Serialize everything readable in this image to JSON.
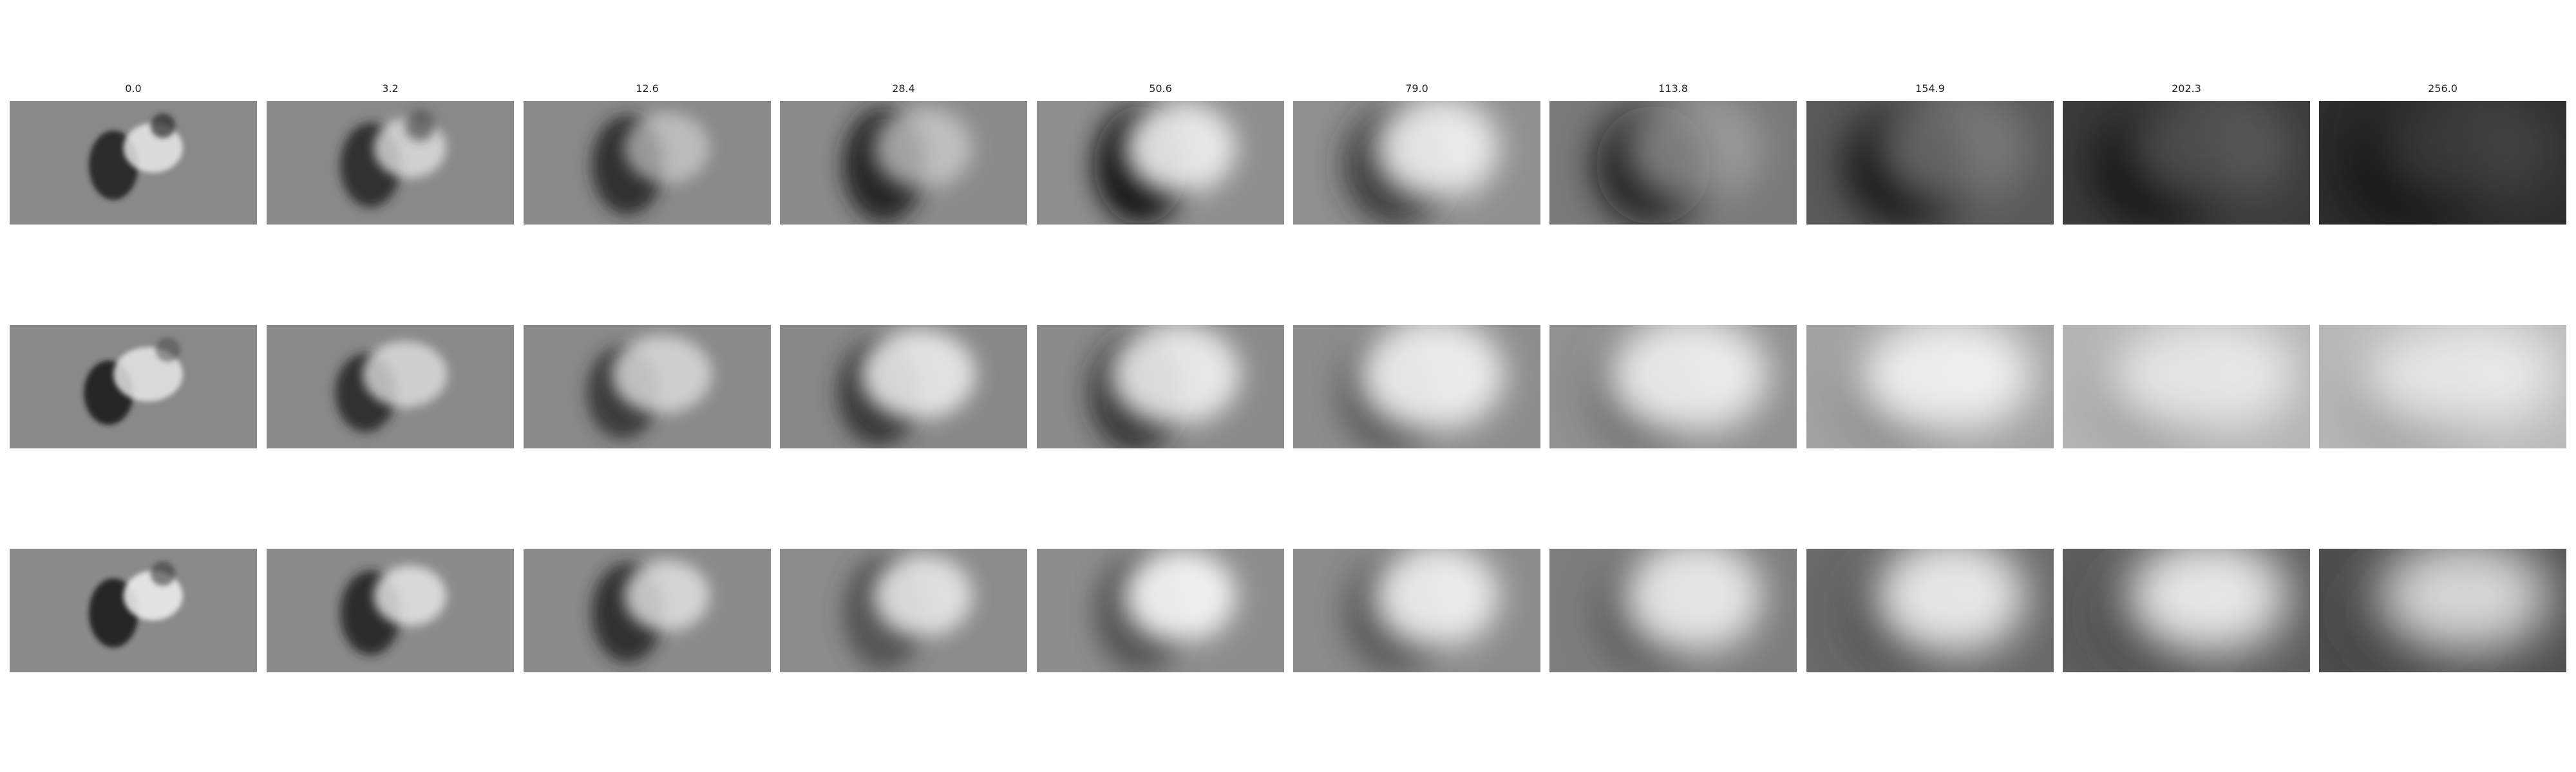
{
  "figure": {
    "column_titles": [
      "0.0",
      "3.2",
      "12.6",
      "28.4",
      "50.6",
      "79.0",
      "113.8",
      "154.9",
      "202.3",
      "256.0"
    ],
    "rows": [
      {
        "panels": [
          {
            "bg": "#898989",
            "blobs": [
              {
                "c": "#202020",
                "o": 0.9
              },
              {
                "c": "#efefef",
                "o": 0.8
              },
              {
                "c": "#2a2a2a",
                "o": 0.7
              }
            ]
          },
          {
            "bg": "#898989",
            "blobs": [
              {
                "c": "#222222",
                "o": 0.85
              },
              {
                "c": "#e8e8e8",
                "o": 0.75
              },
              {
                "c": "#303030",
                "o": 0.6
              }
            ]
          },
          {
            "bg": "#898989",
            "blobs": [
              {
                "c": "#202020",
                "o": 0.85
              },
              {
                "c": "#dddddd",
                "o": 0.6
              }
            ]
          },
          {
            "bg": "#8a8a8a",
            "blobs": [
              {
                "c": "#1e1e1e",
                "o": 0.9
              },
              {
                "c": "#d5d5d5",
                "o": 0.7
              }
            ]
          },
          {
            "bg": "#8e8e8e",
            "blobs": [
              {
                "c": "#0e0e0e",
                "o": 0.95
              },
              {
                "c": "#f2f2f2",
                "o": 0.9
              }
            ]
          },
          {
            "bg": "#8f8f8f",
            "blobs": [
              {
                "c": "#262626",
                "o": 0.9
              },
              {
                "c": "#f6f6f6",
                "o": 0.9
              }
            ]
          },
          {
            "bg": "#7a7a7a",
            "blobs": [
              {
                "c": "#101010",
                "o": 0.95
              },
              {
                "c": "#a8a8a8",
                "o": 0.7
              }
            ]
          },
          {
            "bg": "#5a5a5a",
            "blobs": [
              {
                "c": "#050505",
                "o": 0.95
              },
              {
                "c": "#8a8a8a",
                "o": 0.7
              }
            ]
          },
          {
            "bg": "#3c3c3c",
            "blobs": [
              {
                "c": "#000000",
                "o": 0.95
              },
              {
                "c": "#6a6a6a",
                "o": 0.7
              }
            ]
          },
          {
            "bg": "#2e2e2e",
            "blobs": [
              {
                "c": "#000000",
                "o": 0.85
              },
              {
                "c": "#5a5a5a",
                "o": 0.6
              }
            ]
          }
        ]
      },
      {
        "panels": [
          {
            "bg": "#898989",
            "blobs": [
              {
                "c": "#1a1a1a",
                "o": 0.9
              },
              {
                "c": "#eeeeee",
                "o": 0.8
              },
              {
                "c": "#444444",
                "o": 0.5
              }
            ]
          },
          {
            "bg": "#898989",
            "blobs": [
              {
                "c": "#202020",
                "o": 0.85
              },
              {
                "c": "#e6e6e6",
                "o": 0.75
              }
            ]
          },
          {
            "bg": "#898989",
            "blobs": [
              {
                "c": "#2a2a2a",
                "o": 0.8
              },
              {
                "c": "#e0e0e0",
                "o": 0.8
              }
            ]
          },
          {
            "bg": "#888888",
            "blobs": [
              {
                "c": "#2c2c2c",
                "o": 0.85
              },
              {
                "c": "#f2f2f2",
                "o": 0.85
              }
            ]
          },
          {
            "bg": "#8a8a8a",
            "blobs": [
              {
                "c": "#1e1e1e",
                "o": 0.8
              },
              {
                "c": "#f8f8f8",
                "o": 0.85
              }
            ]
          },
          {
            "bg": "#8d8d8d",
            "blobs": [
              {
                "c": "#3a3a3a",
                "o": 0.7
              },
              {
                "c": "#f6f6f6",
                "o": 0.9
              }
            ]
          },
          {
            "bg": "#909090",
            "blobs": [
              {
                "c": "#4a4a4a",
                "o": 0.6
              },
              {
                "c": "#f4f4f4",
                "o": 0.9
              }
            ]
          },
          {
            "bg": "#a2a2a2",
            "blobs": [
              {
                "c": "#5a5a5a",
                "o": 0.5
              },
              {
                "c": "#f8f8f8",
                "o": 0.9
              }
            ]
          },
          {
            "bg": "#b4b4b4",
            "blobs": [
              {
                "c": "#707070",
                "o": 0.5
              },
              {
                "c": "#f2f2f2",
                "o": 0.85
              }
            ]
          },
          {
            "bg": "#b8b8b8",
            "blobs": [
              {
                "c": "#5e5e5e",
                "o": 0.5
              },
              {
                "c": "#f4f4f4",
                "o": 0.85
              }
            ]
          }
        ]
      },
      {
        "panels": [
          {
            "bg": "#8a8a8a",
            "blobs": [
              {
                "c": "#1a1a1a",
                "o": 0.9
              },
              {
                "c": "#f2f2f2",
                "o": 0.85
              },
              {
                "c": "#3a3a3a",
                "o": 0.6
              }
            ]
          },
          {
            "bg": "#8a8a8a",
            "blobs": [
              {
                "c": "#1c1c1c",
                "o": 0.85
              },
              {
                "c": "#ececec",
                "o": 0.8
              }
            ]
          },
          {
            "bg": "#8a8a8a",
            "blobs": [
              {
                "c": "#222222",
                "o": 0.85
              },
              {
                "c": "#e6e6e6",
                "o": 0.8
              }
            ]
          },
          {
            "bg": "#8b8b8b",
            "blobs": [
              {
                "c": "#404040",
                "o": 0.7
              },
              {
                "c": "#eeeeee",
                "o": 0.85
              }
            ]
          },
          {
            "bg": "#8d8d8d",
            "blobs": [
              {
                "c": "#3c3c3c",
                "o": 0.7
              },
              {
                "c": "#fafafa",
                "o": 0.9
              }
            ]
          },
          {
            "bg": "#8c8c8c",
            "blobs": [
              {
                "c": "#3c3c3c",
                "o": 0.7
              },
              {
                "c": "#f6f6f6",
                "o": 0.9
              }
            ]
          },
          {
            "bg": "#7e7e7e",
            "blobs": [
              {
                "c": "#404040",
                "o": 0.6
              },
              {
                "c": "#f2f2f2",
                "o": 0.9
              }
            ]
          },
          {
            "bg": "#6a6a6a",
            "blobs": [
              {
                "c": "#303030",
                "o": 0.6
              },
              {
                "c": "#f6f6f6",
                "o": 0.9
              }
            ]
          },
          {
            "bg": "#5e5e5e",
            "blobs": [
              {
                "c": "#262626",
                "o": 0.6
              },
              {
                "c": "#f8f8f8",
                "o": 0.9
              }
            ]
          },
          {
            "bg": "#4e4e4e",
            "blobs": [
              {
                "c": "#222222",
                "o": 0.6
              },
              {
                "c": "#f2f2f2",
                "o": 0.85
              }
            ]
          }
        ]
      }
    ]
  }
}
